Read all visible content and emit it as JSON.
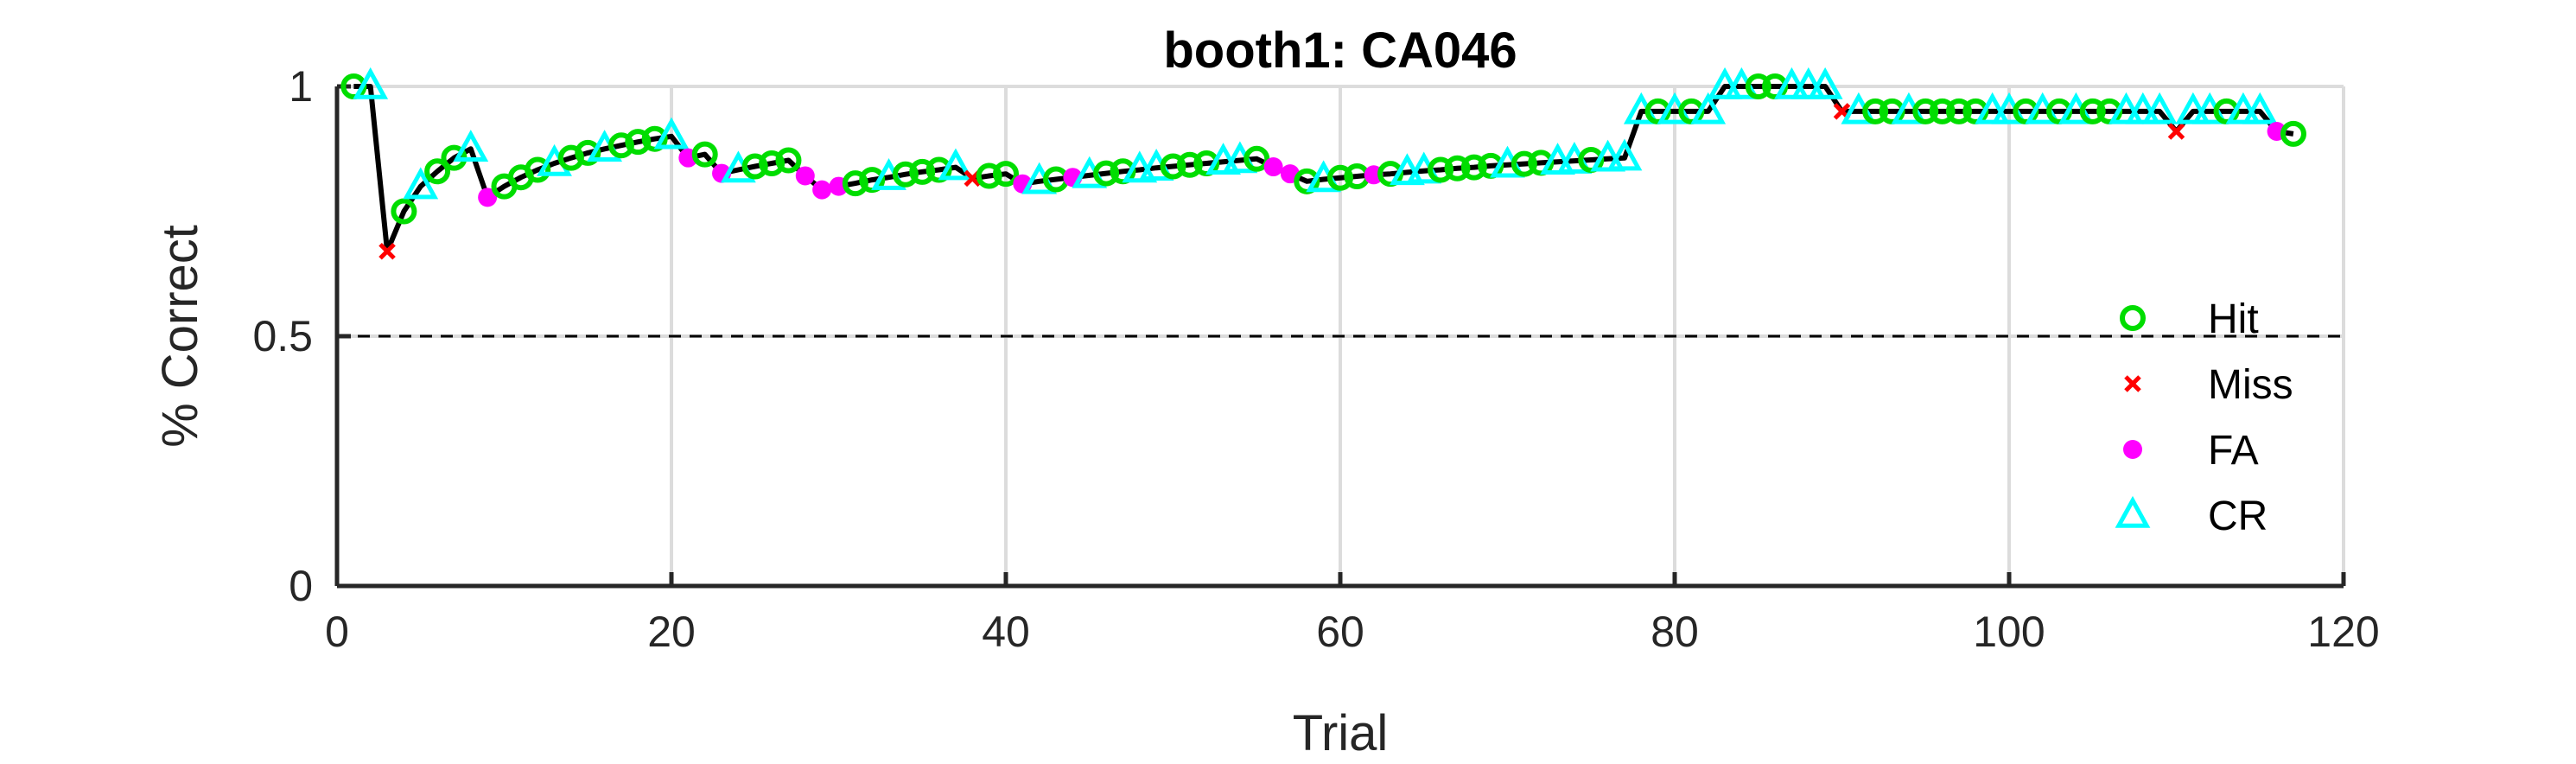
{
  "chart_data": {
    "type": "line",
    "title": "booth1: CA046",
    "xlabel": "Trial",
    "ylabel": "% Correct",
    "xlim": [
      0,
      120
    ],
    "ylim": [
      0,
      1
    ],
    "xticks": [
      0,
      20,
      40,
      60,
      80,
      100,
      120
    ],
    "yticks": [
      0,
      0.5,
      1
    ],
    "xtick_labels": [
      "0",
      "20",
      "40",
      "60",
      "80",
      "100",
      "120"
    ],
    "ytick_labels": [
      "0",
      "0.5",
      "1"
    ],
    "grid": true,
    "reference_line": 0.5,
    "legend_position": "right",
    "colors": {
      "Hit": "#00dd00",
      "Miss": "#ff0000",
      "FA": "#ff00ff",
      "CR": "#00ffff",
      "line": "#000000"
    },
    "legend": [
      "Hit",
      "Miss",
      "FA",
      "CR"
    ],
    "points": [
      [
        1,
        1.0,
        "Hit"
      ],
      [
        2,
        1.0,
        "CR"
      ],
      [
        3,
        0.67,
        "Miss"
      ],
      [
        4,
        0.75,
        "Hit"
      ],
      [
        5,
        0.8,
        "CR"
      ],
      [
        6,
        0.83,
        "Hit"
      ],
      [
        7,
        0.857,
        "Hit"
      ],
      [
        8,
        0.875,
        "CR"
      ],
      [
        9,
        0.778,
        "FA"
      ],
      [
        10,
        0.8,
        "Hit"
      ],
      [
        11,
        0.818,
        "Hit"
      ],
      [
        12,
        0.833,
        "Hit"
      ],
      [
        13,
        0.846,
        "CR"
      ],
      [
        14,
        0.857,
        "Hit"
      ],
      [
        15,
        0.867,
        "Hit"
      ],
      [
        16,
        0.875,
        "CR"
      ],
      [
        17,
        0.882,
        "Hit"
      ],
      [
        18,
        0.889,
        "Hit"
      ],
      [
        19,
        0.895,
        "Hit"
      ],
      [
        20,
        0.9,
        "CR"
      ],
      [
        21,
        0.857,
        "FA"
      ],
      [
        22,
        0.864,
        "Hit"
      ],
      [
        23,
        0.826,
        "FA"
      ],
      [
        24,
        0.833,
        "CR"
      ],
      [
        25,
        0.84,
        "Hit"
      ],
      [
        26,
        0.846,
        "Hit"
      ],
      [
        27,
        0.852,
        "Hit"
      ],
      [
        28,
        0.821,
        "FA"
      ],
      [
        29,
        0.793,
        "FA"
      ],
      [
        30,
        0.8,
        "FA"
      ],
      [
        31,
        0.806,
        "Hit"
      ],
      [
        32,
        0.813,
        "Hit"
      ],
      [
        33,
        0.818,
        "CR"
      ],
      [
        34,
        0.824,
        "Hit"
      ],
      [
        35,
        0.829,
        "Hit"
      ],
      [
        36,
        0.833,
        "Hit"
      ],
      [
        37,
        0.838,
        "CR"
      ],
      [
        38,
        0.816,
        "Miss"
      ],
      [
        39,
        0.821,
        "Hit"
      ],
      [
        40,
        0.825,
        "Hit"
      ],
      [
        41,
        0.805,
        "FA"
      ],
      [
        42,
        0.81,
        "CR"
      ],
      [
        43,
        0.814,
        "Hit"
      ],
      [
        44,
        0.818,
        "FA"
      ],
      [
        45,
        0.822,
        "CR"
      ],
      [
        46,
        0.826,
        "Hit"
      ],
      [
        47,
        0.83,
        "Hit"
      ],
      [
        48,
        0.833,
        "CR"
      ],
      [
        49,
        0.837,
        "CR"
      ],
      [
        50,
        0.84,
        "Hit"
      ],
      [
        51,
        0.843,
        "Hit"
      ],
      [
        52,
        0.846,
        "Hit"
      ],
      [
        53,
        0.849,
        "CR"
      ],
      [
        54,
        0.852,
        "CR"
      ],
      [
        55,
        0.855,
        "Hit"
      ],
      [
        56,
        0.839,
        "FA"
      ],
      [
        57,
        0.825,
        "FA"
      ],
      [
        58,
        0.81,
        "Hit"
      ],
      [
        59,
        0.814,
        "CR"
      ],
      [
        60,
        0.817,
        "Hit"
      ],
      [
        61,
        0.82,
        "Hit"
      ],
      [
        62,
        0.823,
        "FA"
      ],
      [
        63,
        0.825,
        "Hit"
      ],
      [
        64,
        0.828,
        "CR"
      ],
      [
        65,
        0.831,
        "CR"
      ],
      [
        66,
        0.833,
        "Hit"
      ],
      [
        67,
        0.836,
        "Hit"
      ],
      [
        68,
        0.838,
        "Hit"
      ],
      [
        69,
        0.841,
        "Hit"
      ],
      [
        70,
        0.843,
        "CR"
      ],
      [
        71,
        0.845,
        "Hit"
      ],
      [
        72,
        0.847,
        "Hit"
      ],
      [
        73,
        0.849,
        "CR"
      ],
      [
        74,
        0.851,
        "CR"
      ],
      [
        75,
        0.853,
        "Hit"
      ],
      [
        76,
        0.855,
        "CR"
      ],
      [
        77,
        0.857,
        "CR"
      ],
      [
        78,
        0.95,
        "CR"
      ],
      [
        79,
        0.95,
        "Hit"
      ],
      [
        80,
        0.95,
        "CR"
      ],
      [
        81,
        0.95,
        "Hit"
      ],
      [
        82,
        0.95,
        "CR"
      ],
      [
        83,
        1.0,
        "CR"
      ],
      [
        84,
        1.0,
        "CR"
      ],
      [
        85,
        1.0,
        "Hit"
      ],
      [
        86,
        1.0,
        "Hit"
      ],
      [
        87,
        1.0,
        "CR"
      ],
      [
        88,
        1.0,
        "CR"
      ],
      [
        89,
        1.0,
        "CR"
      ],
      [
        90,
        0.95,
        "Miss"
      ],
      [
        91,
        0.95,
        "CR"
      ],
      [
        92,
        0.95,
        "Hit"
      ],
      [
        93,
        0.95,
        "Hit"
      ],
      [
        94,
        0.95,
        "CR"
      ],
      [
        95,
        0.95,
        "Hit"
      ],
      [
        96,
        0.95,
        "Hit"
      ],
      [
        97,
        0.95,
        "Hit"
      ],
      [
        98,
        0.95,
        "Hit"
      ],
      [
        99,
        0.95,
        "CR"
      ],
      [
        100,
        0.95,
        "CR"
      ],
      [
        101,
        0.95,
        "Hit"
      ],
      [
        102,
        0.95,
        "CR"
      ],
      [
        103,
        0.95,
        "Hit"
      ],
      [
        104,
        0.95,
        "CR"
      ],
      [
        105,
        0.95,
        "Hit"
      ],
      [
        106,
        0.95,
        "Hit"
      ],
      [
        107,
        0.95,
        "CR"
      ],
      [
        108,
        0.95,
        "CR"
      ],
      [
        109,
        0.95,
        "CR"
      ],
      [
        110,
        0.91,
        "Miss"
      ],
      [
        111,
        0.95,
        "CR"
      ],
      [
        112,
        0.95,
        "CR"
      ],
      [
        113,
        0.95,
        "Hit"
      ],
      [
        114,
        0.95,
        "CR"
      ],
      [
        115,
        0.95,
        "CR"
      ],
      [
        116,
        0.91,
        "FA"
      ],
      [
        117,
        0.905,
        "Hit"
      ]
    ]
  }
}
